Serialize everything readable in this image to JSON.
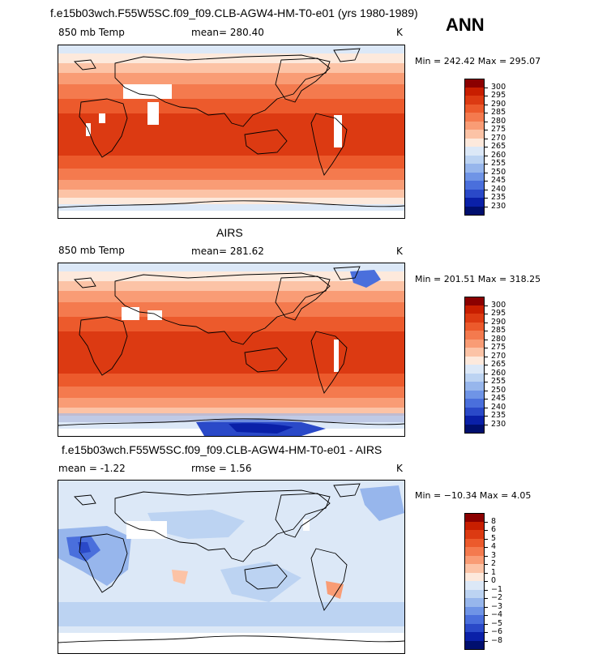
{
  "header": {
    "run_title": "f.e15b03wch.F55W5SC.f09_f09.CLB-AGW4-HM-T0-e01 (yrs 1980-1989)",
    "season": "ANN"
  },
  "panels": [
    {
      "id": "model",
      "title": "",
      "left_label": "850 mb Temp",
      "center_label": "mean=  280.40",
      "units": "K",
      "minmax": "Min = 242.42 Max = 295.07",
      "levels": [
        "300",
        "295",
        "290",
        "285",
        "280",
        "275",
        "270",
        "265",
        "260",
        "255",
        "250",
        "245",
        "240",
        "235",
        "230"
      ],
      "colors": [
        "#8b0000",
        "#c81e00",
        "#dc3a12",
        "#ec5a2c",
        "#f47a4e",
        "#f99c75",
        "#fcc3a6",
        "#fde9dc",
        "#dce8f7",
        "#bcd3f2",
        "#97b6ec",
        "#6f94e6",
        "#4a6fdc",
        "#2a49c8",
        "#0a20a8",
        "#000f6e"
      ]
    },
    {
      "id": "obs",
      "title": "AIRS",
      "left_label": "850 mb Temp",
      "center_label": "mean=  281.62",
      "units": "K",
      "minmax": "Min = 201.51 Max = 318.25",
      "levels": [
        "300",
        "295",
        "290",
        "285",
        "280",
        "275",
        "270",
        "265",
        "260",
        "255",
        "250",
        "245",
        "240",
        "235",
        "230"
      ],
      "colors": [
        "#8b0000",
        "#c81e00",
        "#dc3a12",
        "#ec5a2c",
        "#f47a4e",
        "#f99c75",
        "#fcc3a6",
        "#fde9dc",
        "#dce8f7",
        "#bcd3f2",
        "#97b6ec",
        "#6f94e6",
        "#4a6fdc",
        "#2a49c8",
        "#0a20a8",
        "#000f6e"
      ]
    },
    {
      "id": "diff",
      "title": "f.e15b03wch.F55W5SC.f09_f09.CLB-AGW4-HM-T0-e01 - AIRS",
      "left_label": "mean =    -1.22",
      "center_label": "rmse =    1.56",
      "units": "K",
      "minmax": "Min = −10.34 Max =    4.05",
      "levels": [
        "8",
        "6",
        "5",
        "4",
        "3",
        "2",
        "1",
        "0",
        "−1",
        "−2",
        "−3",
        "−4",
        "−5",
        "−6",
        "−8"
      ],
      "colors": [
        "#8b0000",
        "#c81e00",
        "#dc3a12",
        "#ec5a2c",
        "#f47a4e",
        "#f99c75",
        "#fcc3a6",
        "#fde9dc",
        "#dce8f7",
        "#bcd3f2",
        "#97b6ec",
        "#6f94e6",
        "#4a6fdc",
        "#2a49c8",
        "#0a20a8",
        "#000f6e"
      ]
    }
  ],
  "chart_data": [
    {
      "type": "heatmap",
      "title": "f.e15b03wch.F55W5SC.f09_f09.CLB-AGW4-HM-T0-e01 (yrs 1980-1989)",
      "variable": "850 mb Temp",
      "units": "K",
      "mean": 280.4,
      "min": 242.42,
      "max": 295.07,
      "contour_levels": [
        230,
        235,
        240,
        245,
        250,
        255,
        260,
        265,
        270,
        275,
        280,
        285,
        290,
        295,
        300
      ]
    },
    {
      "type": "heatmap",
      "title": "AIRS",
      "variable": "850 mb Temp",
      "units": "K",
      "mean": 281.62,
      "min": 201.51,
      "max": 318.25,
      "contour_levels": [
        230,
        235,
        240,
        245,
        250,
        255,
        260,
        265,
        270,
        275,
        280,
        285,
        290,
        295,
        300
      ]
    },
    {
      "type": "heatmap",
      "title": "f.e15b03wch.F55W5SC.f09_f09.CLB-AGW4-HM-T0-e01 - AIRS",
      "units": "K",
      "mean": -1.22,
      "rmse": 1.56,
      "min": -10.34,
      "max": 4.05,
      "contour_levels": [
        -8,
        -6,
        -5,
        -4,
        -3,
        -2,
        -1,
        0,
        1,
        2,
        3,
        4,
        5,
        6,
        8
      ]
    }
  ]
}
